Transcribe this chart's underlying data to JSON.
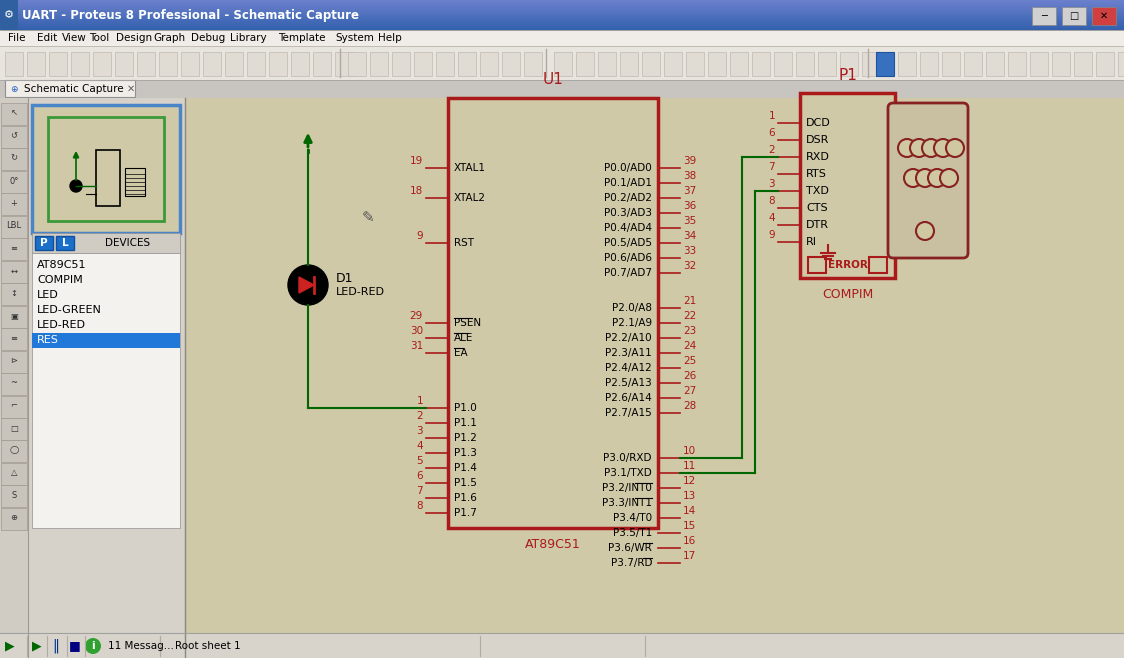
{
  "title_bar": "UART - Proteus 8 Professional - Schematic Capture",
  "menu_items": [
    "File",
    "Edit",
    "View",
    "Tool",
    "Design",
    "Graph",
    "Debug",
    "Library",
    "Template",
    "System",
    "Help"
  ],
  "tab_text": "Schematic Capture",
  "bg_schematic": "#cfc9a8",
  "bg_left_panel": "#d6d2ca",
  "bg_toolbar": "#e8e4de",
  "bg_titlebar_top": "#5b9bd5",
  "bg_titlebar_bot": "#2a6ab0",
  "devices": [
    "AT89C51",
    "COMPIM",
    "LED",
    "LED-GREEN",
    "LED-RED",
    "RES"
  ],
  "selected_device": "RES",
  "status_text": "11 Messag...",
  "sheet_text": "Root sheet 1",
  "left_pin_data": [
    [
      "19",
      "XTAL1"
    ],
    [
      "18",
      "XTAL2"
    ],
    [
      "9",
      "RST"
    ],
    [
      "29",
      "PSEN"
    ],
    [
      "30",
      "ALE"
    ],
    [
      "31",
      "EA"
    ],
    [
      "1",
      "P1.0"
    ],
    [
      "2",
      "P1.1"
    ],
    [
      "3",
      "P1.2"
    ],
    [
      "4",
      "P1.3"
    ],
    [
      "5",
      "P1.4"
    ],
    [
      "6",
      "P1.5"
    ],
    [
      "7",
      "P1.6"
    ],
    [
      "8",
      "P1.7"
    ]
  ],
  "left_pin_y": [
    490,
    460,
    415,
    335,
    320,
    305,
    250,
    235,
    220,
    205,
    190,
    175,
    160,
    145
  ],
  "right_pin_data_upper": [
    [
      "39",
      "P0.0/AD0"
    ],
    [
      "38",
      "P0.1/AD1"
    ],
    [
      "37",
      "P0.2/AD2"
    ],
    [
      "36",
      "P0.3/AD3"
    ],
    [
      "35",
      "P0.4/AD4"
    ],
    [
      "34",
      "P0.5/AD5"
    ],
    [
      "33",
      "P0.6/AD6"
    ],
    [
      "32",
      "P0.7/AD7"
    ]
  ],
  "right_pin_y_upper": [
    490,
    475,
    460,
    445,
    430,
    415,
    400,
    385
  ],
  "right_pin_data_mid": [
    [
      "21",
      "P2.0/A8"
    ],
    [
      "22",
      "P2.1/A9"
    ],
    [
      "23",
      "P2.2/A10"
    ],
    [
      "24",
      "P2.3/A11"
    ],
    [
      "25",
      "P2.4/A12"
    ],
    [
      "26",
      "P2.5/A13"
    ],
    [
      "27",
      "P2.6/A14"
    ],
    [
      "28",
      "P2.7/A15"
    ]
  ],
  "right_pin_y_mid": [
    350,
    335,
    320,
    305,
    290,
    275,
    260,
    245
  ],
  "right_pin_data_lower": [
    [
      "10",
      "P3.0/RXD"
    ],
    [
      "11",
      "P3.1/TXD"
    ],
    [
      "12",
      "P3.2/INT0"
    ],
    [
      "13",
      "P3.3/INT1"
    ],
    [
      "14",
      "P3.4/T0"
    ],
    [
      "15",
      "P3.5/T1"
    ],
    [
      "16",
      "P3.6/WR"
    ],
    [
      "17",
      "P3.7/RD"
    ]
  ],
  "right_pin_y_lower": [
    200,
    185,
    170,
    155,
    140,
    125,
    110,
    95
  ],
  "compim_pins": [
    [
      "1",
      "DCD"
    ],
    [
      "6",
      "DSR"
    ],
    [
      "2",
      "RXD"
    ],
    [
      "7",
      "RTS"
    ],
    [
      "3",
      "TXD"
    ],
    [
      "8",
      "CTS"
    ],
    [
      "4",
      "DTR"
    ],
    [
      "9",
      "RI"
    ]
  ],
  "compim_pin_y": [
    535,
    518,
    501,
    484,
    467,
    450,
    433,
    416
  ],
  "overline_pins_left": [
    "PSEN",
    "ALE",
    "EA"
  ],
  "overline_pins_right": [
    "P3.2/INT0",
    "P3.3/INT1",
    "P3.6/WR",
    "P3.7/RD"
  ]
}
